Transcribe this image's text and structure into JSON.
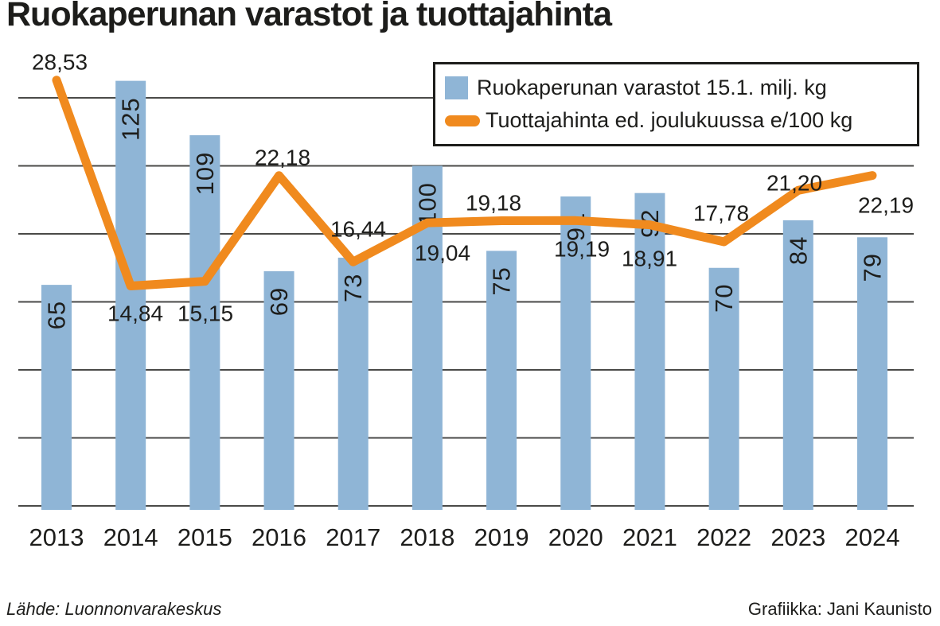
{
  "title": "Ruokaperunan varastot ja tuottajahinta",
  "legend": {
    "bars_label": "Ruokaperunan varastot 15.1. milj. kg",
    "line_label": "Tuottajahinta ed. joulukuussa e/100 kg"
  },
  "footer": {
    "source": "Lähde: Luonnonvarakeskus",
    "credit": "Grafiikka: Jani Kaunisto"
  },
  "colors": {
    "bar": "#8FB5D6",
    "line": "#F08A1E",
    "grid": "#4a4a48",
    "text": "#1d1d1b"
  },
  "chart_data": {
    "type": "bar+line",
    "title": "Ruokaperunan varastot ja tuottajahinta",
    "categories": [
      "2013",
      "2014",
      "2015",
      "2016",
      "2017",
      "2018",
      "2019",
      "2020",
      "2021",
      "2022",
      "2023",
      "2024"
    ],
    "series": [
      {
        "name": "Ruokaperunan varastot 15.1. milj. kg",
        "type": "bar",
        "unit": "milj. kg",
        "values": [
          65,
          125,
          109,
          69,
          73,
          100,
          75,
          91,
          92,
          70,
          84,
          79
        ]
      },
      {
        "name": "Tuottajahinta ed. joulukuussa e/100 kg",
        "type": "line",
        "unit": "e/100 kg",
        "values": [
          28.53,
          14.84,
          15.15,
          22.18,
          16.44,
          19.04,
          19.18,
          19.19,
          18.91,
          17.78,
          21.2,
          22.19
        ],
        "labels": [
          "28,53",
          "14,84",
          "15,15",
          "22,18",
          "16,44",
          "19,04",
          "19,18",
          "19,19",
          "18,91",
          "17,78",
          "21,20",
          "22,19"
        ]
      }
    ],
    "bar_axis": {
      "min": 0,
      "gridline_step": 20,
      "top_gridline": 120,
      "ticks_shown": false
    },
    "grid": true,
    "legend_position": "top-right",
    "value_labels": "on-chart"
  }
}
